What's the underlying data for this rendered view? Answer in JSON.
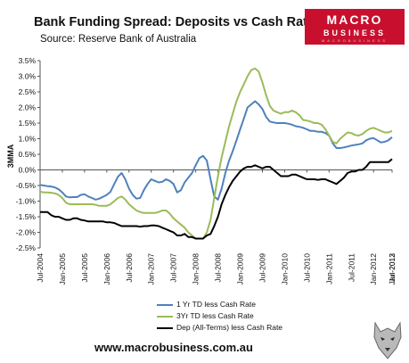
{
  "header": {
    "title": "Bank Funding Spread: Deposits vs Cash Rate",
    "source": "Source: Reserve Bank of Australia"
  },
  "logo": {
    "line1": "MACRO",
    "line2": "BUSINESS",
    "line3": "MACROBUSINESS",
    "color": "#c8102e"
  },
  "footer": {
    "url": "www.macrobusiness.com.au"
  },
  "chart_data": {
    "type": "line",
    "ylabel": "3MMA",
    "xlabel": "",
    "ylim": [
      -2.5,
      3.5
    ],
    "yticks": [
      "3.5%",
      "3.0%",
      "2.5%",
      "2.0%",
      "1.5%",
      "1.0%",
      "0.5%",
      "0.0%",
      "-0.5%",
      "-1.0%",
      "-1.5%",
      "-2.0%",
      "-2.5%"
    ],
    "xticks": [
      "Jul-2004",
      "Jan-2005",
      "Jul-2005",
      "Jan-2006",
      "Jul-2006",
      "Jan-2007",
      "Jul-2007",
      "Jan-2008",
      "Jul-2008",
      "Jan-2009",
      "Jul-2009",
      "Jan-2010",
      "Jul-2010",
      "Jan-2011",
      "Jul-2011",
      "Jan-2012",
      "Jul-2012",
      "Jan-2013"
    ],
    "grid": false,
    "legend_position": "bottom",
    "series": [
      {
        "name": "1 Yr TD less Cash Rate",
        "color": "#4f81bd",
        "values": [
          -0.48,
          -0.5,
          -0.52,
          -0.53,
          -0.56,
          -0.62,
          -0.72,
          -0.85,
          -0.88,
          -0.87,
          -0.87,
          -0.8,
          -0.78,
          -0.85,
          -0.9,
          -0.95,
          -0.92,
          -0.86,
          -0.8,
          -0.7,
          -0.45,
          -0.22,
          -0.1,
          -0.3,
          -0.6,
          -0.8,
          -0.92,
          -0.9,
          -0.65,
          -0.45,
          -0.3,
          -0.35,
          -0.4,
          -0.38,
          -0.3,
          -0.35,
          -0.45,
          -0.72,
          -0.65,
          -0.4,
          -0.25,
          -0.1,
          0.15,
          0.38,
          0.45,
          0.3,
          -0.3,
          -0.85,
          -0.95,
          -0.6,
          -0.1,
          0.3,
          0.6,
          0.95,
          1.3,
          1.65,
          2.0,
          2.1,
          2.2,
          2.1,
          1.95,
          1.7,
          1.55,
          1.52,
          1.5,
          1.5,
          1.5,
          1.48,
          1.45,
          1.4,
          1.38,
          1.35,
          1.3,
          1.25,
          1.25,
          1.22,
          1.22,
          1.18,
          1.1,
          0.85,
          0.7,
          0.7,
          0.72,
          0.75,
          0.78,
          0.8,
          0.82,
          0.85,
          0.95,
          1.0,
          1.02,
          0.95,
          0.88,
          0.9,
          0.95,
          1.05
        ]
      },
      {
        "name": "3Yr TD less Cash Rate",
        "color": "#9bbb59",
        "values": [
          -0.7,
          -0.72,
          -0.72,
          -0.73,
          -0.75,
          -0.8,
          -0.9,
          -1.05,
          -1.1,
          -1.1,
          -1.1,
          -1.1,
          -1.1,
          -1.1,
          -1.1,
          -1.12,
          -1.15,
          -1.15,
          -1.15,
          -1.1,
          -1.0,
          -0.9,
          -0.85,
          -0.95,
          -1.1,
          -1.2,
          -1.3,
          -1.35,
          -1.38,
          -1.38,
          -1.38,
          -1.38,
          -1.35,
          -1.3,
          -1.3,
          -1.4,
          -1.55,
          -1.65,
          -1.75,
          -1.85,
          -2.0,
          -2.1,
          -2.2,
          -2.2,
          -2.2,
          -2.0,
          -1.6,
          -0.9,
          -0.2,
          0.4,
          0.9,
          1.4,
          1.8,
          2.2,
          2.5,
          2.75,
          3.0,
          3.2,
          3.25,
          3.15,
          2.8,
          2.4,
          2.05,
          1.9,
          1.85,
          1.8,
          1.85,
          1.85,
          1.9,
          1.85,
          1.75,
          1.6,
          1.58,
          1.55,
          1.5,
          1.5,
          1.45,
          1.3,
          1.1,
          0.9,
          0.85,
          1.0,
          1.1,
          1.2,
          1.18,
          1.12,
          1.1,
          1.15,
          1.25,
          1.32,
          1.35,
          1.3,
          1.25,
          1.2,
          1.2,
          1.25
        ]
      },
      {
        "name": "Dep (All-Terms) less Cash Rate",
        "color": "#000000",
        "values": [
          -1.35,
          -1.35,
          -1.35,
          -1.45,
          -1.5,
          -1.5,
          -1.55,
          -1.6,
          -1.6,
          -1.55,
          -1.55,
          -1.6,
          -1.62,
          -1.65,
          -1.65,
          -1.65,
          -1.65,
          -1.65,
          -1.68,
          -1.68,
          -1.7,
          -1.75,
          -1.8,
          -1.8,
          -1.8,
          -1.8,
          -1.8,
          -1.82,
          -1.8,
          -1.8,
          -1.78,
          -1.78,
          -1.8,
          -1.85,
          -1.9,
          -1.95,
          -2.0,
          -2.1,
          -2.1,
          -2.05,
          -2.15,
          -2.15,
          -2.2,
          -2.2,
          -2.2,
          -2.1,
          -2.05,
          -1.8,
          -1.5,
          -1.1,
          -0.8,
          -0.55,
          -0.35,
          -0.2,
          -0.05,
          0.05,
          0.1,
          0.1,
          0.15,
          0.1,
          0.05,
          0.1,
          0.1,
          0.0,
          -0.1,
          -0.2,
          -0.2,
          -0.2,
          -0.15,
          -0.15,
          -0.2,
          -0.25,
          -0.3,
          -0.3,
          -0.3,
          -0.32,
          -0.3,
          -0.3,
          -0.35,
          -0.4,
          -0.45,
          -0.35,
          -0.25,
          -0.1,
          -0.05,
          -0.05,
          0.0,
          0.0,
          0.1,
          0.25,
          0.25,
          0.25,
          0.25,
          0.25,
          0.25,
          0.35
        ]
      }
    ]
  }
}
